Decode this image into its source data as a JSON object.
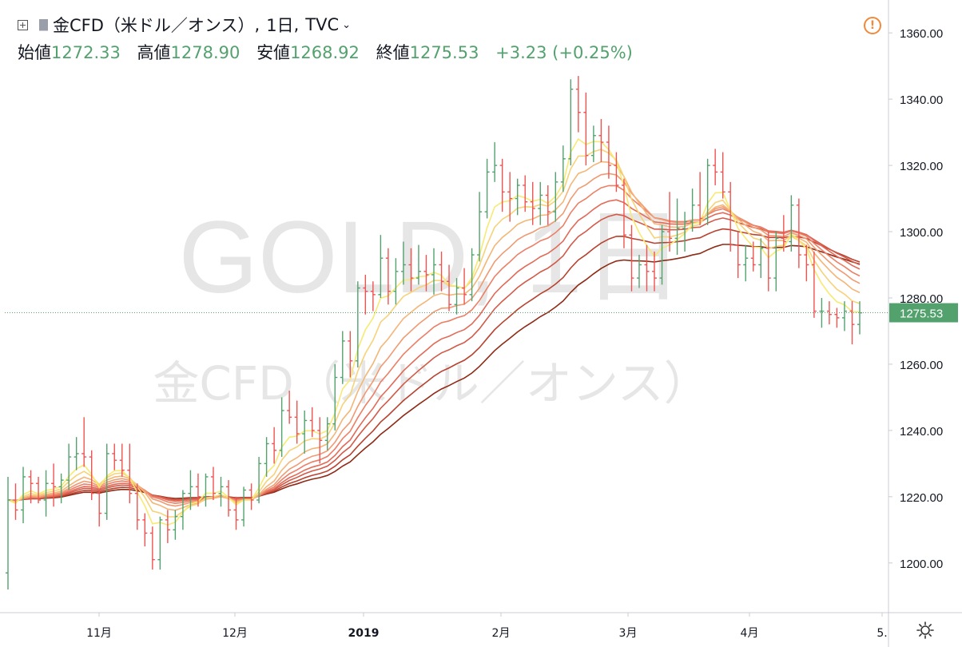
{
  "header": {
    "symbol": "金CFD（米ドル／オンス）",
    "interval": "1日",
    "source": "TVC",
    "sep1": ",",
    "sep2": ","
  },
  "ohlc": {
    "open_label": "始値",
    "open": "1272.33",
    "high_label": "高値",
    "high": "1278.90",
    "low_label": "安値",
    "low": "1268.92",
    "close_label": "終値",
    "close": "1275.53",
    "change": "+3.23 (+0.25%)"
  },
  "watermark": {
    "line1": "GOLD, 1日",
    "line2": "金CFD（米ドル／オンス）"
  },
  "price_tag": "1275.53",
  "colors": {
    "up": "#53a26e",
    "down": "#ef5350",
    "axis_text": "#131722",
    "price_line": "#53a26e",
    "ribbon": [
      "#f7ea74",
      "#f6d37a",
      "#f3b678",
      "#f09a72",
      "#ec7f66",
      "#e26a58",
      "#d25a48",
      "#b8422f",
      "#8f2a15"
    ]
  },
  "chart_data": {
    "type": "ohlc",
    "title": "金CFD（米ドル／オンス）, 1日, TVC",
    "ylim": [
      1185,
      1368
    ],
    "y_ticks": [
      "1200.00",
      "1220.00",
      "1240.00",
      "1260.00",
      "1280.00",
      "1300.00",
      "1320.00",
      "1340.00",
      "1360.00"
    ],
    "x_ticks": [
      "11月",
      "12月",
      "2019",
      "2月",
      "3月",
      "4月",
      "5."
    ],
    "last_price": 1275.53,
    "bars": [
      [
        1197,
        1226,
        1192,
        1219
      ],
      [
        1219,
        1224,
        1213,
        1216
      ],
      [
        1216,
        1229,
        1212,
        1226
      ],
      [
        1226,
        1228,
        1218,
        1224
      ],
      [
        1224,
        1226,
        1218,
        1219
      ],
      [
        1219,
        1228,
        1214,
        1224
      ],
      [
        1224,
        1230,
        1217,
        1223
      ],
      [
        1223,
        1227,
        1218,
        1225
      ],
      [
        1225,
        1236,
        1222,
        1232
      ],
      [
        1232,
        1238,
        1228,
        1233
      ],
      [
        1233,
        1244,
        1229,
        1232
      ],
      [
        1232,
        1234,
        1219,
        1221
      ],
      [
        1221,
        1222,
        1211,
        1215
      ],
      [
        1215,
        1236,
        1213,
        1233
      ],
      [
        1233,
        1236,
        1228,
        1231
      ],
      [
        1231,
        1236,
        1226,
        1228
      ],
      [
        1228,
        1236,
        1218,
        1221
      ],
      [
        1221,
        1224,
        1210,
        1213
      ],
      [
        1213,
        1215,
        1205,
        1209
      ],
      [
        1209,
        1211,
        1198,
        1201
      ],
      [
        1201,
        1214,
        1198,
        1213
      ],
      [
        1213,
        1216,
        1206,
        1210
      ],
      [
        1210,
        1216,
        1207,
        1214
      ],
      [
        1214,
        1222,
        1210,
        1221
      ],
      [
        1221,
        1228,
        1216,
        1223
      ],
      [
        1223,
        1227,
        1217,
        1220
      ],
      [
        1220,
        1227,
        1217,
        1226
      ],
      [
        1226,
        1229,
        1219,
        1221
      ],
      [
        1221,
        1226,
        1217,
        1223
      ],
      [
        1223,
        1225,
        1214,
        1216
      ],
      [
        1216,
        1220,
        1210,
        1213
      ],
      [
        1213,
        1223,
        1211,
        1222
      ],
      [
        1222,
        1224,
        1216,
        1219
      ],
      [
        1219,
        1232,
        1218,
        1230
      ],
      [
        1230,
        1238,
        1226,
        1236
      ],
      [
        1236,
        1241,
        1230,
        1234
      ],
      [
        1234,
        1250,
        1232,
        1246
      ],
      [
        1246,
        1252,
        1242,
        1244
      ],
      [
        1244,
        1249,
        1236,
        1239
      ],
      [
        1239,
        1246,
        1233,
        1243
      ],
      [
        1243,
        1247,
        1238,
        1240
      ],
      [
        1240,
        1244,
        1230,
        1237
      ],
      [
        1237,
        1244,
        1234,
        1242
      ],
      [
        1242,
        1260,
        1240,
        1256
      ],
      [
        1256,
        1270,
        1254,
        1267
      ],
      [
        1267,
        1270,
        1256,
        1261
      ],
      [
        1261,
        1285,
        1259,
        1283
      ],
      [
        1283,
        1287,
        1275,
        1282
      ],
      [
        1282,
        1285,
        1276,
        1281
      ],
      [
        1281,
        1299,
        1280,
        1292
      ],
      [
        1292,
        1295,
        1278,
        1282
      ],
      [
        1282,
        1292,
        1278,
        1288
      ],
      [
        1288,
        1297,
        1284,
        1290
      ],
      [
        1290,
        1295,
        1282,
        1286
      ],
      [
        1286,
        1296,
        1284,
        1288
      ],
      [
        1288,
        1293,
        1282,
        1287
      ],
      [
        1287,
        1295,
        1281,
        1290
      ],
      [
        1290,
        1294,
        1282,
        1285
      ],
      [
        1285,
        1290,
        1276,
        1278
      ],
      [
        1278,
        1286,
        1275,
        1283
      ],
      [
        1283,
        1289,
        1278,
        1281
      ],
      [
        1281,
        1295,
        1279,
        1293
      ],
      [
        1293,
        1312,
        1291,
        1306
      ],
      [
        1306,
        1322,
        1304,
        1318
      ],
      [
        1318,
        1327,
        1315,
        1320
      ],
      [
        1320,
        1322,
        1306,
        1312
      ],
      [
        1312,
        1318,
        1303,
        1310
      ],
      [
        1310,
        1316,
        1305,
        1314
      ],
      [
        1314,
        1317,
        1306,
        1309
      ],
      [
        1309,
        1315,
        1302,
        1307
      ],
      [
        1307,
        1315,
        1302,
        1311
      ],
      [
        1311,
        1314,
        1302,
        1306
      ],
      [
        1306,
        1318,
        1303,
        1315
      ],
      [
        1315,
        1326,
        1312,
        1322
      ],
      [
        1322,
        1346,
        1320,
        1343
      ],
      [
        1343,
        1347,
        1330,
        1336
      ],
      [
        1336,
        1342,
        1320,
        1323
      ],
      [
        1323,
        1332,
        1321,
        1329
      ],
      [
        1329,
        1334,
        1321,
        1327
      ],
      [
        1327,
        1332,
        1316,
        1320
      ],
      [
        1320,
        1324,
        1312,
        1314
      ],
      [
        1314,
        1316,
        1295,
        1299
      ],
      [
        1299,
        1302,
        1282,
        1286
      ],
      [
        1286,
        1293,
        1283,
        1290
      ],
      [
        1290,
        1296,
        1282,
        1288
      ],
      [
        1288,
        1294,
        1282,
        1286
      ],
      [
        1286,
        1302,
        1284,
        1300
      ],
      [
        1300,
        1312,
        1294,
        1298
      ],
      [
        1298,
        1310,
        1293,
        1301
      ],
      [
        1301,
        1306,
        1294,
        1303
      ],
      [
        1303,
        1313,
        1300,
        1308
      ],
      [
        1308,
        1318,
        1302,
        1304
      ],
      [
        1304,
        1322,
        1302,
        1320
      ],
      [
        1320,
        1325,
        1314,
        1318
      ],
      [
        1318,
        1324,
        1310,
        1312
      ],
      [
        1312,
        1315,
        1294,
        1296
      ],
      [
        1296,
        1300,
        1286,
        1290
      ],
      [
        1290,
        1296,
        1285,
        1292
      ],
      [
        1292,
        1297,
        1288,
        1290
      ],
      [
        1290,
        1298,
        1286,
        1295
      ],
      [
        1295,
        1300,
        1282,
        1286
      ],
      [
        1286,
        1300,
        1282,
        1298
      ],
      [
        1298,
        1305,
        1294,
        1297
      ],
      [
        1297,
        1311,
        1294,
        1308
      ],
      [
        1308,
        1310,
        1289,
        1293
      ],
      [
        1293,
        1296,
        1285,
        1290
      ],
      [
        1290,
        1294,
        1274,
        1276
      ],
      [
        1276,
        1280,
        1271,
        1276
      ],
      [
        1276,
        1279,
        1272,
        1275
      ],
      [
        1275,
        1277,
        1271,
        1274
      ],
      [
        1274,
        1279,
        1270,
        1276
      ],
      [
        1276,
        1279,
        1266,
        1272
      ],
      [
        1272,
        1279,
        1269,
        1275.5
      ]
    ],
    "ribbon_periods": [
      5,
      8,
      12,
      16,
      20,
      25,
      30,
      38,
      48
    ]
  }
}
